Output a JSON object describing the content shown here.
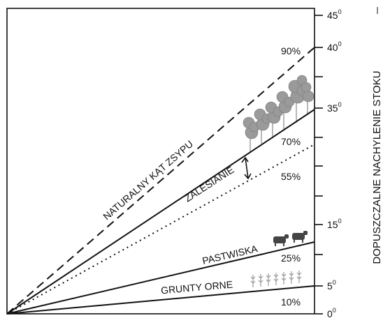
{
  "axis_title": "DOPUSZCZALNE NACHYLENIE STOKU",
  "angle_ticks": [
    {
      "number": "0",
      "sup": "0"
    },
    {
      "number": "5",
      "sup": "0"
    },
    {
      "number": "15",
      "sup": "0"
    },
    {
      "number": "35",
      "sup": "0"
    },
    {
      "number": "40",
      "sup": "0"
    },
    {
      "number": "45",
      "sup": "0"
    }
  ],
  "zones": {
    "arable": "GRUNTY ORNE",
    "pasture": "PASTWISKA",
    "forest": "ZALESIANIE",
    "repose": "NATURALNY KĄT ZSYPU"
  },
  "percent_labels": [
    "10%",
    "25%",
    "55%",
    "70%",
    "90%"
  ]
}
